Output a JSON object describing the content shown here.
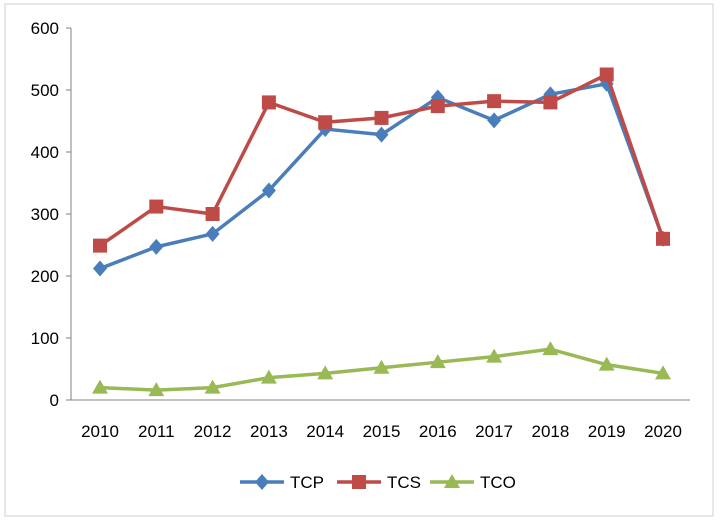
{
  "chart_data": {
    "type": "line",
    "categories": [
      "2010",
      "2011",
      "2012",
      "2013",
      "2014",
      "2015",
      "2016",
      "2017",
      "2018",
      "2019",
      "2020"
    ],
    "series": [
      {
        "name": "TCP",
        "color": "#4a7ebb",
        "marker": "diamond",
        "values": [
          212,
          247,
          268,
          338,
          437,
          428,
          488,
          451,
          493,
          510,
          260
        ]
      },
      {
        "name": "TCS",
        "color": "#be4b48",
        "marker": "square",
        "values": [
          249,
          312,
          300,
          480,
          448,
          455,
          474,
          482,
          480,
          525,
          260
        ]
      },
      {
        "name": "TCO",
        "color": "#98b954",
        "marker": "triangle",
        "values": [
          20,
          16,
          20,
          36,
          43,
          52,
          61,
          70,
          82,
          57,
          43
        ]
      }
    ],
    "y_ticks": [
      "0",
      "100",
      "200",
      "300",
      "400",
      "500",
      "600"
    ],
    "ylim": [
      0,
      600
    ],
    "grid": false,
    "legend_position": "bottom"
  }
}
